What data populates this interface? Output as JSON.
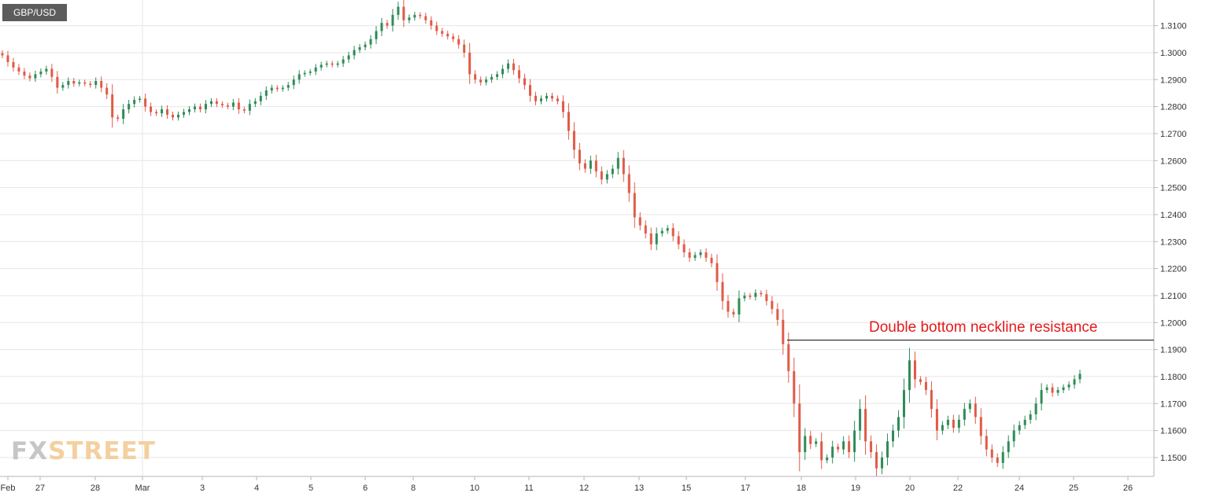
{
  "symbol": "GBP/USD",
  "logo": {
    "part1": "FX",
    "part2": "STREET"
  },
  "annotation": "Double bottom neckline resistance",
  "colors": {
    "up": "#2e8b57",
    "down": "#e05a47",
    "grid": "#e6e6e6",
    "axis": "#b5b5b5",
    "label": "#333333",
    "annotation": "#e41a1c",
    "neckline": "#333333"
  },
  "chart_data": {
    "type": "candlestick",
    "title": "GBP/USD",
    "ylim": [
      1.143,
      1.3195
    ],
    "y_ticks": [
      "1.3100",
      "1.3000",
      "1.2900",
      "1.2800",
      "1.2700",
      "1.2600",
      "1.2500",
      "1.2400",
      "1.2300",
      "1.2200",
      "1.2100",
      "1.2000",
      "1.1900",
      "1.1800",
      "1.1700",
      "1.1600",
      "1.1500"
    ],
    "x_tick_labels": [
      "Feb",
      "27",
      "28",
      "Mar",
      "3",
      "4",
      "5",
      "6",
      "8",
      "10",
      "11",
      "12",
      "13",
      "15",
      "17",
      "18",
      "19",
      "20",
      "22",
      "24",
      "25",
      "26"
    ],
    "neckline": {
      "level": 1.1935,
      "label": "Double bottom neckline resistance"
    },
    "grid": true,
    "series_approx_closes": [
      1.299,
      1.2965,
      1.2945,
      1.293,
      1.2915,
      1.2905,
      1.292,
      1.293,
      1.294,
      1.291,
      1.287,
      1.288,
      1.2895,
      1.2885,
      1.289,
      1.2885,
      1.288,
      1.2895,
      1.287,
      1.2845,
      1.276,
      1.2755,
      1.279,
      1.281,
      1.2825,
      1.283,
      1.28,
      1.278,
      1.2775,
      1.279,
      1.277,
      1.276,
      1.277,
      1.278,
      1.279,
      1.28,
      1.279,
      1.281,
      1.282,
      1.281,
      1.2805,
      1.28,
      1.2815,
      1.279,
      1.2785,
      1.281,
      1.282,
      1.284,
      1.286,
      1.287,
      1.2865,
      1.287,
      1.288,
      1.29,
      1.292,
      1.2925,
      1.293,
      1.2945,
      1.2955,
      1.296,
      1.2955,
      1.296,
      1.2975,
      1.299,
      1.301,
      1.302,
      1.303,
      1.305,
      1.308,
      1.311,
      1.31,
      1.314,
      1.317,
      1.312,
      1.313,
      1.314,
      1.3135,
      1.312,
      1.31,
      1.308,
      1.307,
      1.306,
      1.305,
      1.303,
      1.3,
      1.292,
      1.29,
      1.289,
      1.29,
      1.291,
      1.292,
      1.294,
      1.296,
      1.2935,
      1.2905,
      1.288,
      1.284,
      1.282,
      1.283,
      1.284,
      1.283,
      1.282,
      1.278,
      1.271,
      1.264,
      1.259,
      1.257,
      1.26,
      1.256,
      1.253,
      1.255,
      1.257,
      1.261,
      1.255,
      1.248,
      1.239,
      1.236,
      1.233,
      1.229,
      1.233,
      1.234,
      1.235,
      1.232,
      1.229,
      1.226,
      1.224,
      1.225,
      1.226,
      1.224,
      1.222,
      1.215,
      1.208,
      1.204,
      1.203,
      1.209,
      1.21,
      1.2095,
      1.211,
      1.2105,
      1.208,
      1.205,
      1.201,
      1.192,
      1.182,
      1.17,
      1.152,
      1.158,
      1.155,
      1.156,
      1.149,
      1.15,
      1.154,
      1.153,
      1.156,
      1.152,
      1.16,
      1.168,
      1.156,
      1.152,
      1.146,
      1.15,
      1.156,
      1.16,
      1.165,
      1.175,
      1.186,
      1.179,
      1.178,
      1.175,
      1.168,
      1.16,
      1.162,
      1.164,
      1.161,
      1.164,
      1.168,
      1.17,
      1.165,
      1.158,
      1.153,
      1.15,
      1.148,
      1.152,
      1.156,
      1.16,
      1.162,
      1.164,
      1.166,
      1.17,
      1.175,
      1.176,
      1.174,
      1.175,
      1.176,
      1.177,
      1.179,
      1.181
    ]
  }
}
